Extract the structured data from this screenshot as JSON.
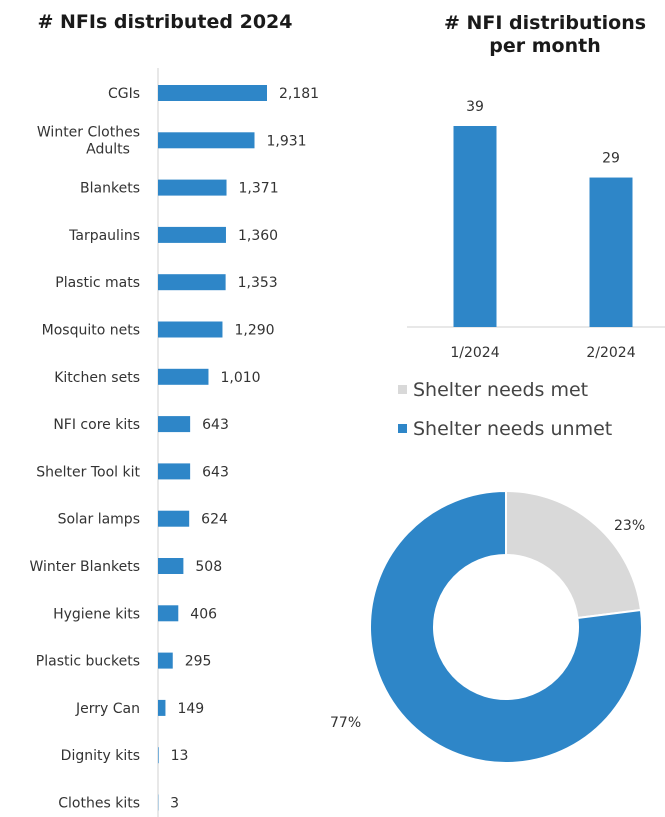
{
  "chart_data": [
    {
      "type": "bar",
      "orientation": "horizontal",
      "title": "# NFIs distributed 2024",
      "categories": [
        "CGIs",
        "Winter Clothes Adults",
        "Blankets",
        "Tarpaulins",
        "Plastic mats",
        "Mosquito nets",
        "Kitchen sets",
        "NFI core kits",
        "Shelter Tool kit",
        "Solar lamps",
        "Winter Blankets",
        "Hygiene kits",
        "Plastic buckets",
        "Jerry Can",
        "Dignity kits",
        "Clothes kits"
      ],
      "value_labels": [
        "2,181",
        "1,931",
        "1,371",
        "1,360",
        "1,353",
        "1,290",
        "1,010",
        "643",
        "643",
        "624",
        "508",
        "406",
        "295",
        "149",
        "13",
        "3"
      ],
      "values": [
        2181,
        1931,
        1371,
        1360,
        1353,
        1290,
        1010,
        643,
        643,
        624,
        508,
        406,
        295,
        149,
        13,
        3
      ],
      "color": "#2e86c8",
      "grid": false
    },
    {
      "type": "bar",
      "title": "# NFI distributions per month",
      "categories": [
        "1/2024",
        "2/2024"
      ],
      "values": [
        39,
        29
      ],
      "color": "#2e86c8",
      "grid": false
    },
    {
      "type": "pie",
      "donut": true,
      "legend_position": "top",
      "labels": [
        "Shelter needs met",
        "Shelter needs unmet"
      ],
      "values": [
        23,
        77
      ],
      "value_labels": [
        "23%",
        "77%"
      ],
      "colors": [
        "#d9d9d9",
        "#2e86c8"
      ]
    }
  ]
}
